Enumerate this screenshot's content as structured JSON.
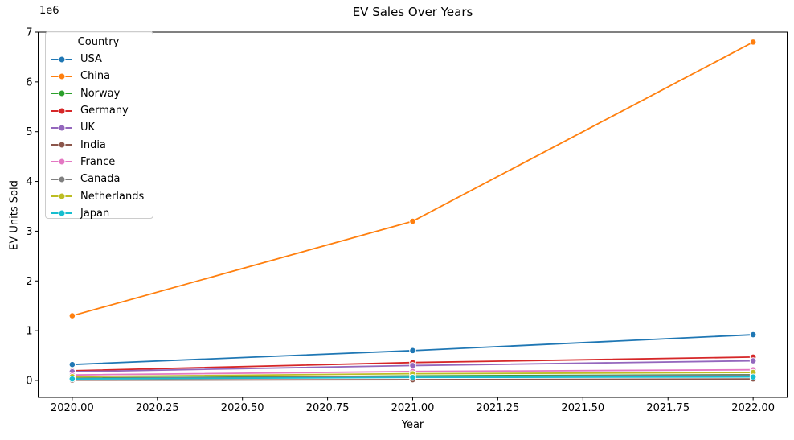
{
  "chart_data": {
    "type": "line",
    "title": "EV Sales Over Years",
    "xlabel": "Year",
    "ylabel": "EV Units Sold",
    "y_offset_label": "1e6",
    "legend_title": "Country",
    "legend_position": "upper left",
    "grid": false,
    "x": [
      2020,
      2021,
      2022
    ],
    "x_ticks": [
      "2020.00",
      "2020.25",
      "2020.50",
      "2020.75",
      "2021.00",
      "2021.25",
      "2021.50",
      "2021.75",
      "2022.00"
    ],
    "y_ticks": [
      "0",
      "1",
      "2",
      "3",
      "4",
      "5",
      "6",
      "7"
    ],
    "xlim": [
      2019.9,
      2022.1
    ],
    "ylim": [
      -340000,
      7000000
    ],
    "series": [
      {
        "name": "USA",
        "color": "#1f77b4",
        "values": [
          320000,
          600000,
          920000
        ]
      },
      {
        "name": "China",
        "color": "#ff7f0e",
        "values": [
          1300000,
          3200000,
          6800000
        ]
      },
      {
        "name": "Norway",
        "color": "#2ca02c",
        "values": [
          45000,
          90000,
          115000
        ]
      },
      {
        "name": "Germany",
        "color": "#d62728",
        "values": [
          195000,
          360000,
          470000
        ]
      },
      {
        "name": "UK",
        "color": "#9467bd",
        "values": [
          175000,
          300000,
          395000
        ]
      },
      {
        "name": "India",
        "color": "#8c564b",
        "values": [
          5000,
          15000,
          30000
        ]
      },
      {
        "name": "France",
        "color": "#e377c2",
        "values": [
          110000,
          180000,
          215000
        ]
      },
      {
        "name": "Canada",
        "color": "#7f7f7f",
        "values": [
          40000,
          75000,
          110000
        ]
      },
      {
        "name": "Netherlands",
        "color": "#bcbd22",
        "values": [
          75000,
          135000,
          160000
        ]
      },
      {
        "name": "Japan",
        "color": "#17becf",
        "values": [
          30000,
          60000,
          70000
        ]
      }
    ]
  }
}
